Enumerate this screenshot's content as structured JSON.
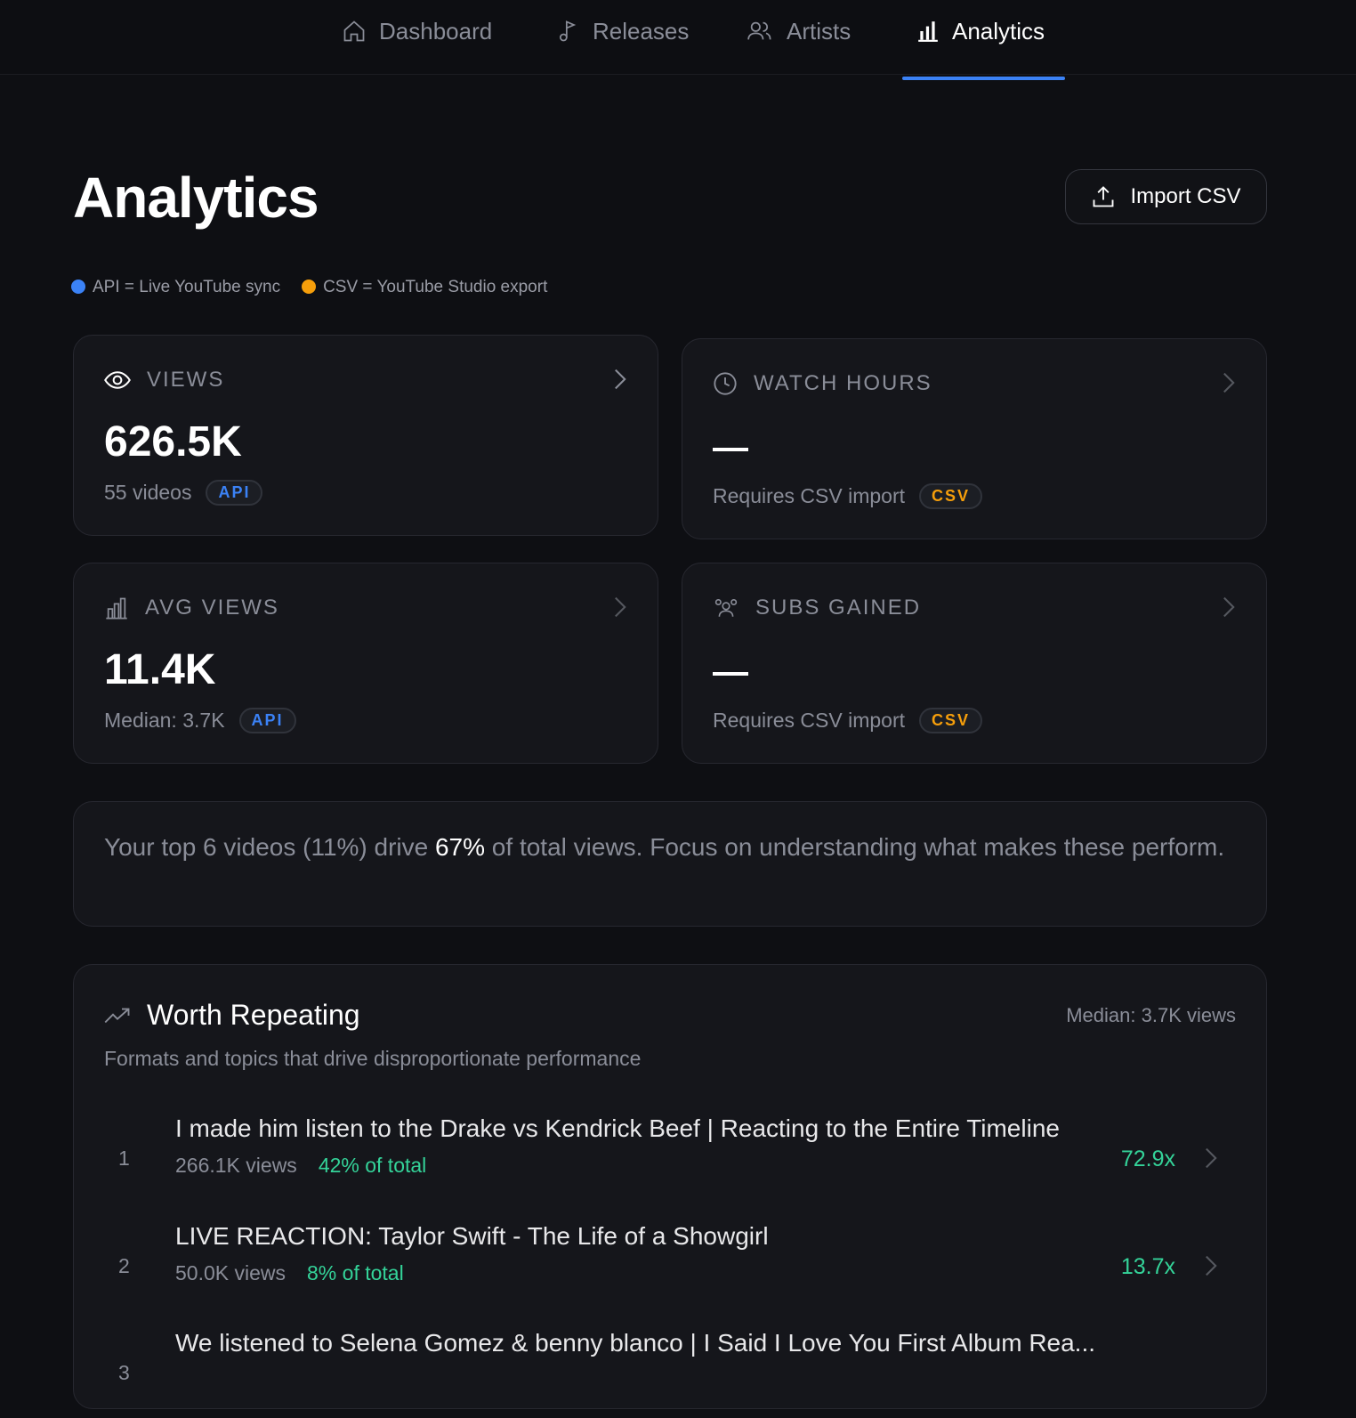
{
  "nav": {
    "items": [
      {
        "label": "Dashboard",
        "icon": "home-icon"
      },
      {
        "label": "Releases",
        "icon": "music-note-icon"
      },
      {
        "label": "Artists",
        "icon": "users-icon"
      },
      {
        "label": "Analytics",
        "icon": "bar-chart-icon",
        "active": true
      }
    ],
    "accent": "#3b82f6"
  },
  "page": {
    "title": "Analytics",
    "import_label": "Import CSV"
  },
  "legend": {
    "api": "API = Live YouTube sync",
    "csv": "CSV = YouTube Studio export",
    "api_color": "#3b82f6",
    "csv_color": "#f59e0b"
  },
  "cards": [
    {
      "label": "VIEWS",
      "value": "626.5K",
      "sub": "55 videos",
      "badge": "API"
    },
    {
      "label": "WATCH HOURS",
      "value": "—",
      "sub": "Requires CSV import",
      "badge": "CSV"
    },
    {
      "label": "AVG VIEWS",
      "value": "11.4K",
      "sub": "Median: 3.7K",
      "badge": "API"
    },
    {
      "label": "SUBS GAINED",
      "value": "—",
      "sub": "Requires CSV import",
      "badge": "CSV"
    }
  ],
  "insight": {
    "before": "Your top 6 videos (11%) drive ",
    "highlight": "67%",
    "after": " of total views. Focus on understanding what makes these perform."
  },
  "worth": {
    "title": "Worth Repeating",
    "median": "Median: 3.7K views",
    "description": "Formats and topics that drive disproportionate performance",
    "rows": [
      {
        "rank": "1",
        "title": "I made him listen to the Drake vs Kendrick Beef | Reacting to the Entire Timeline",
        "views": "266.1K views",
        "pct": "42% of total",
        "mult": "72.9x"
      },
      {
        "rank": "2",
        "title": "LIVE REACTION: Taylor Swift - The Life of a Showgirl",
        "views": "50.0K views",
        "pct": "8% of total",
        "mult": "13.7x"
      },
      {
        "rank": "3",
        "title": "We listened to Selena Gomez & benny blanco | I Said I Love You First Album Rea...",
        "views": "",
        "pct": "",
        "mult": ""
      }
    ]
  }
}
